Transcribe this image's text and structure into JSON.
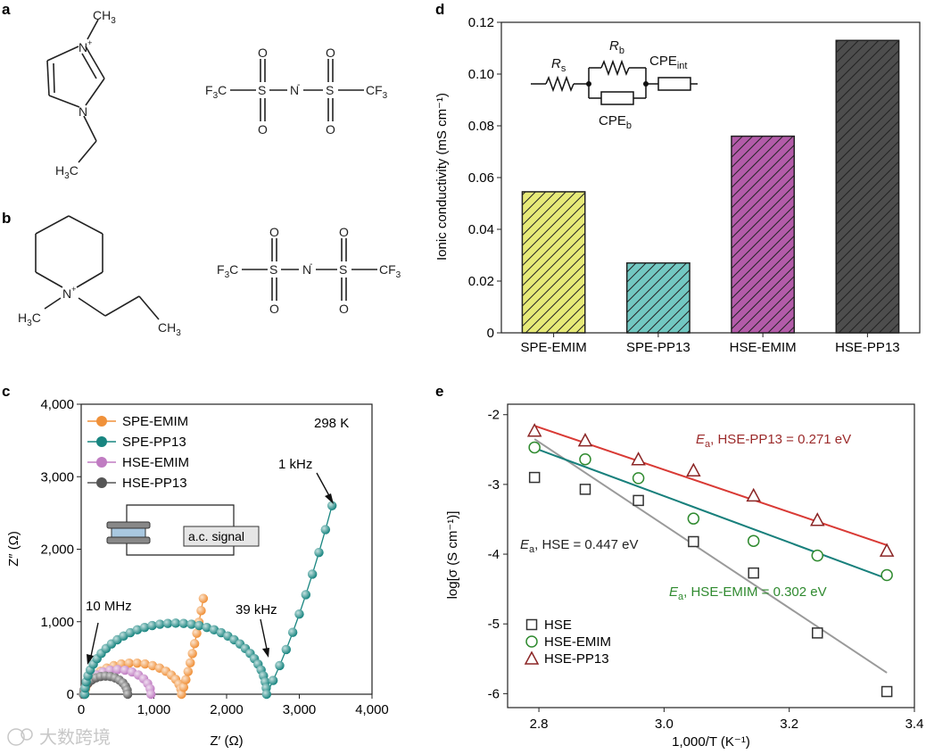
{
  "panel_labels": {
    "a": "a",
    "b": "b",
    "c": "c",
    "d": "d",
    "e": "e"
  },
  "structure_a": {
    "cation": {
      "methyl": "CH",
      "methyl_sub": "3",
      "n_plus": "N",
      "plus": "+",
      "n": "N",
      "ethyl": "H",
      "ethyl_sub": "3",
      "ethyl_c": "C"
    },
    "anion": {
      "f3c": "F",
      "f3c_sub": "3",
      "c": "C",
      "s": "S",
      "o": "O",
      "n": "N",
      "minus": "-",
      "cf3": "CF",
      "cf3_sub": "3"
    }
  },
  "structure_b": {
    "cation": {
      "n_plus": "N",
      "plus": "+",
      "h3c": "H",
      "h3c_sub": "3",
      "c": "C",
      "ch3": "CH",
      "ch3_sub": "3"
    },
    "anion": {
      "f3c": "F",
      "f3c_sub": "3",
      "c": "C",
      "s": "S",
      "o": "O",
      "n": "N",
      "minus": "-",
      "cf3": "CF",
      "cf3_sub": "3"
    }
  },
  "watermark": "大数跨境",
  "chart_data": [
    {
      "panel": "c",
      "type": "scatter",
      "xlabel": "Z′ (Ω)",
      "ylabel": "Z″ (Ω)",
      "xlim": [
        0,
        4000
      ],
      "ylim": [
        0,
        4000
      ],
      "xticks": [
        "0",
        "1,000",
        "2,000",
        "3,000",
        "4,000"
      ],
      "yticks": [
        "0",
        "1,000",
        "2,000",
        "3,000",
        "4,000"
      ],
      "temperature": "298 K",
      "inset_label": "a.c. signal",
      "annotations": {
        "f1": "10 MHz",
        "f2": "39 kHz",
        "f3": "1 kHz"
      },
      "series": [
        {
          "name": "SPE-EMIM",
          "color": "#f0913a",
          "arc": {
            "x0": 50,
            "x1": 1380,
            "h": 430
          },
          "tail": {
            "from": [
              1380,
              0
            ],
            "to": [
              1680,
              1320
            ]
          }
        },
        {
          "name": "SPE-PP13",
          "color": "#188580",
          "arc": {
            "x0": 50,
            "x1": 2550,
            "h": 980
          },
          "tail": {
            "from": [
              2550,
              0
            ],
            "to": [
              3450,
              2600
            ]
          }
        },
        {
          "name": "HSE-EMIM",
          "color": "#c07cc2",
          "arc": {
            "x0": 40,
            "x1": 960,
            "h": 340
          }
        },
        {
          "name": "HSE-PP13",
          "color": "#555555",
          "arc": {
            "x0": 30,
            "x1": 640,
            "h": 250
          }
        }
      ]
    },
    {
      "panel": "d",
      "type": "bar",
      "categories": [
        "SPE-EMIM",
        "SPE-PP13",
        "HSE-EMIM",
        "HSE-PP13"
      ],
      "values": [
        0.0545,
        0.027,
        0.076,
        0.113
      ],
      "colors": [
        "#e7ea78",
        "#72c8c2",
        "#b35ba9",
        "#4d4d4d"
      ],
      "ylabel": "Ionic conductivity (mS cm⁻¹)",
      "ylim": [
        0,
        0.12
      ],
      "yticks": [
        "0",
        "0.02",
        "0.04",
        "0.06",
        "0.08",
        "0.10",
        "0.12"
      ],
      "circuit": {
        "rs": "R",
        "rs_sub": "s",
        "rb": "R",
        "rb_sub": "b",
        "cpe_int": "CPE",
        "cpe_int_sub": "int",
        "cpe_b": "CPE",
        "cpe_b_sub": "b"
      }
    },
    {
      "panel": "e",
      "type": "scatter",
      "xlabel": "1,000/T (K⁻¹)",
      "ylabel": "log[σ (S cm⁻¹)]",
      "xlim": [
        2.75,
        3.4
      ],
      "ylim": [
        -6.2,
        -1.85
      ],
      "xticks": [
        "2.8",
        "3.0",
        "3.2",
        "3.4"
      ],
      "yticks": [
        "-2",
        "-3",
        "-4",
        "-5",
        "-6"
      ],
      "x": [
        2.793,
        2.874,
        2.959,
        3.047,
        3.143,
        3.245,
        3.356
      ],
      "series": [
        {
          "name": "HSE",
          "marker": "square",
          "color": "#333333",
          "line_color": "#9a9a9a",
          "y": [
            -2.9,
            -3.07,
            -3.23,
            -3.82,
            -4.27,
            -5.13,
            -5.97
          ],
          "fit": [
            [
              2.793,
              -2.35
            ],
            [
              3.356,
              -5.7
            ]
          ],
          "ea_prefix": "E",
          "ea_sub": "a",
          "ea_text": ", HSE = 0.447 eV"
        },
        {
          "name": "HSE-EMIM",
          "marker": "circle",
          "color": "#2f8a2f",
          "line_color": "#18807c",
          "y": [
            -2.47,
            -2.64,
            -2.91,
            -3.49,
            -3.81,
            -4.02,
            -4.3
          ],
          "fit": [
            [
              2.793,
              -2.48
            ],
            [
              3.356,
              -4.35
            ]
          ],
          "ea_prefix": "E",
          "ea_sub": "a",
          "ea_text": ", HSE-EMIM = 0.302 eV"
        },
        {
          "name": "HSE-PP13",
          "marker": "triangle",
          "color": "#8b2525",
          "line_color": "#d93a35",
          "y": [
            -2.23,
            -2.37,
            -2.64,
            -2.8,
            -3.16,
            -3.51,
            -3.95
          ],
          "fit": [
            [
              2.793,
              -2.16
            ],
            [
              3.356,
              -3.87
            ]
          ],
          "ea_prefix": "E",
          "ea_sub": "a",
          "ea_text": ", HSE-PP13 = 0.271 eV"
        }
      ]
    }
  ]
}
